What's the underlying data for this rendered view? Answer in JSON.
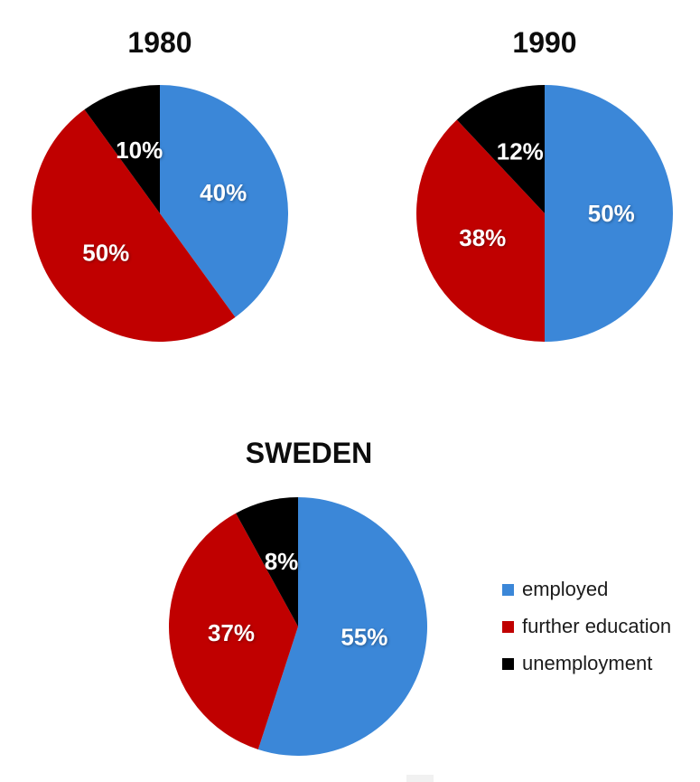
{
  "page": {
    "background": "#ffffff"
  },
  "chart_data": [
    {
      "type": "pie",
      "title": "1980",
      "categories": [
        "employed",
        "further education",
        "unemployment"
      ],
      "values": [
        40,
        50,
        10
      ],
      "slice_labels": [
        "40%",
        "50%",
        "10%"
      ],
      "colors": [
        "#3B87D8",
        "#C00000",
        "#000000"
      ],
      "start_angle_deg": 0,
      "direction": "clockwise",
      "label_color": "#FFFFFF"
    },
    {
      "type": "pie",
      "title": "1990",
      "categories": [
        "employed",
        "further education",
        "unemployment"
      ],
      "values": [
        50,
        38,
        12
      ],
      "slice_labels": [
        "50%",
        "38%",
        "12%"
      ],
      "colors": [
        "#3B87D8",
        "#C00000",
        "#000000"
      ],
      "start_angle_deg": 0,
      "direction": "clockwise",
      "label_color": "#FFFFFF"
    },
    {
      "type": "pie",
      "title": "SWEDEN",
      "categories": [
        "employed",
        "further education",
        "unemployment"
      ],
      "values": [
        55,
        37,
        8
      ],
      "slice_labels": [
        "55%",
        "37%",
        "8%"
      ],
      "colors": [
        "#3B87D8",
        "#C00000",
        "#000000"
      ],
      "start_angle_deg": 0,
      "direction": "clockwise",
      "label_color": "#FFFFFF"
    }
  ],
  "legend": {
    "position": "right-bottom",
    "items": [
      {
        "label": "employed",
        "color": "#3B87D8"
      },
      {
        "label": "further education",
        "color": "#C00000"
      },
      {
        "label": "unemployment",
        "color": "#000000"
      }
    ]
  }
}
